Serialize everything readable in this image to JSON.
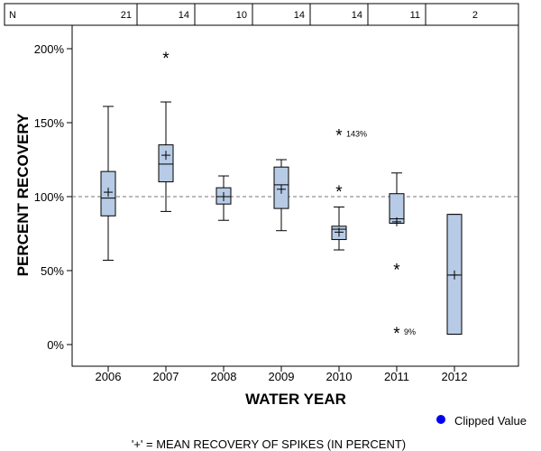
{
  "chart_data": {
    "type": "boxplot",
    "title": "",
    "xlabel": "WATER YEAR",
    "ylabel": "PERCENT RECOVERY",
    "ylim": [
      -15,
      222
    ],
    "yticks": [
      0,
      50,
      100,
      150,
      200
    ],
    "ytick_labels": [
      "0%",
      "50%",
      "100%",
      "150%",
      "200%"
    ],
    "reference_line": 100,
    "count_row": {
      "label": "N",
      "counts": [
        "21",
        "14",
        "10",
        "14",
        "14",
        "11",
        "2"
      ]
    },
    "categories": [
      "2006",
      "2007",
      "2008",
      "2009",
      "2010",
      "2011",
      "2012"
    ],
    "boxes": [
      {
        "year": "2006",
        "whisker_low": 57,
        "q1": 87,
        "median": 99,
        "q3": 117,
        "whisker_high": 161,
        "mean": 103,
        "outliers": []
      },
      {
        "year": "2007",
        "whisker_low": 90,
        "q1": 110,
        "median": 122,
        "q3": 135,
        "whisker_high": 164,
        "mean": 128,
        "outliers": [
          {
            "value": 195,
            "label": ""
          }
        ]
      },
      {
        "year": "2008",
        "whisker_low": 84,
        "q1": 95,
        "median": 100,
        "q3": 106,
        "whisker_high": 114,
        "mean": 100,
        "outliers": []
      },
      {
        "year": "2009",
        "whisker_low": 77,
        "q1": 92,
        "median": 108,
        "q3": 120,
        "whisker_high": 125,
        "mean": 105,
        "outliers": []
      },
      {
        "year": "2010",
        "whisker_low": 64,
        "q1": 71,
        "median": 78,
        "q3": 80,
        "whisker_high": 93,
        "mean": 76,
        "outliers": [
          {
            "value": 143,
            "label": "143%"
          },
          {
            "value": 105,
            "label": ""
          }
        ]
      },
      {
        "year": "2011",
        "whisker_low": 82,
        "q1": 82,
        "median": 85,
        "q3": 102,
        "whisker_high": 116,
        "mean": 83,
        "outliers": [
          {
            "value": 52,
            "label": ""
          },
          {
            "value": 9,
            "label": "9%"
          }
        ]
      },
      {
        "year": "2012",
        "whisker_low": 7,
        "q1": 7,
        "median": 47,
        "q3": 88,
        "whisker_high": 88,
        "mean": 47,
        "outliers": []
      }
    ],
    "legend": {
      "label": "Clipped Value",
      "marker_color": "#0000ee",
      "placement": "bottom-right"
    },
    "footnote": "'+' = MEAN RECOVERY OF SPIKES (IN PERCENT)",
    "colors": {
      "box_fill": "#b7cbe6",
      "stroke": "#000000",
      "reference_line": "#777777"
    }
  }
}
